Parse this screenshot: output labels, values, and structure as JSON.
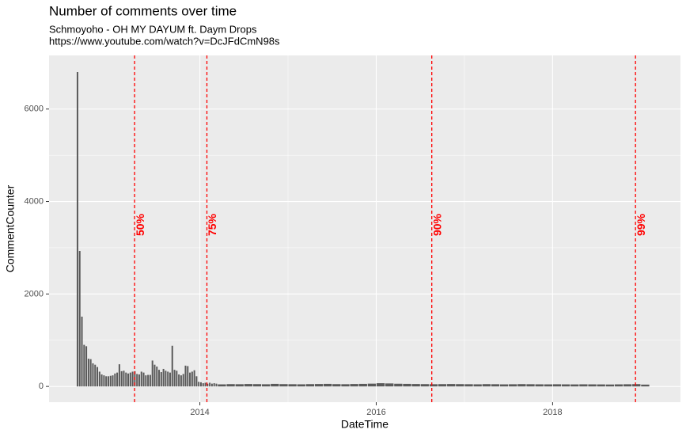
{
  "chart_data": {
    "type": "histogram",
    "title": "Number of comments over time",
    "subtitle": [
      "Schmoyoho - OH MY DAYUM ft. Daym Drops",
      "https://www.youtube.com/watch?v=DcJFdCmN98s"
    ],
    "x_label": "DateTime",
    "y_label": "CommentCounter",
    "bins": [
      2012.6,
      2012.625,
      2012.65,
      2012.675,
      2012.7,
      2012.725,
      2012.75,
      2012.775,
      2012.8,
      2012.825,
      2012.85,
      2012.875,
      2012.9,
      2012.925,
      2012.95,
      2012.975,
      2013,
      2013.025,
      2013.05,
      2013.075,
      2013.1,
      2013.125,
      2013.15,
      2013.175,
      2013.2,
      2013.225,
      2013.25,
      2013.275,
      2013.3,
      2013.325,
      2013.35,
      2013.375,
      2013.4,
      2013.425,
      2013.45,
      2013.475,
      2013.5,
      2013.525,
      2013.55,
      2013.575,
      2013.6,
      2013.625,
      2013.65,
      2013.675,
      2013.7,
      2013.725,
      2013.75,
      2013.775,
      2013.8,
      2013.825,
      2013.85,
      2013.875,
      2013.9,
      2013.925,
      2013.95,
      2013.975,
      2014,
      2014.025,
      2014.05,
      2014.075,
      2014.1,
      2014.125,
      2014.15,
      2014.175,
      2014.2,
      2014.3,
      2014.4,
      2014.5,
      2014.6,
      2014.7,
      2014.8,
      2014.9,
      2015,
      2015.1,
      2015.2,
      2015.3,
      2015.4,
      2015.5,
      2015.6,
      2015.7,
      2015.8,
      2015.9,
      2016,
      2016.1,
      2016.2,
      2016.3,
      2016.4,
      2016.5,
      2016.6,
      2016.7,
      2016.8,
      2016.9,
      2017,
      2017.1,
      2017.2,
      2017.3,
      2017.4,
      2017.5,
      2017.6,
      2017.7,
      2017.8,
      2017.9,
      2018,
      2018.1,
      2018.2,
      2018.3,
      2018.4,
      2018.5,
      2018.6,
      2018.7,
      2018.8,
      2018.9,
      2019,
      2019.1
    ],
    "values": [
      6800,
      2930,
      1510,
      900,
      870,
      600,
      590,
      500,
      470,
      420,
      320,
      260,
      240,
      220,
      220,
      230,
      240,
      280,
      300,
      480,
      330,
      340,
      300,
      280,
      300,
      320,
      330,
      270,
      260,
      320,
      300,
      240,
      250,
      250,
      560,
      470,
      430,
      360,
      310,
      380,
      340,
      320,
      300,
      880,
      360,
      340,
      260,
      240,
      270,
      450,
      440,
      300,
      320,
      350,
      220,
      100,
      90,
      70,
      80,
      60,
      80,
      60,
      70,
      60,
      45,
      50,
      48,
      52,
      50,
      47,
      55,
      50,
      48,
      46,
      50,
      52,
      55,
      50,
      48,
      52,
      55,
      60,
      70,
      65,
      58,
      55,
      52,
      50,
      48,
      50,
      52,
      50,
      48,
      46,
      50,
      48,
      45,
      47,
      50,
      48,
      46,
      45,
      47,
      45,
      44,
      46,
      45,
      44,
      42,
      45,
      47,
      50,
      40
    ],
    "color": "#595959",
    "vlines": [
      {
        "x": 2013.26,
        "label": "50%"
      },
      {
        "x": 2014.08,
        "label": "75%"
      },
      {
        "x": 2016.63,
        "label": "90%"
      },
      {
        "x": 2018.94,
        "label": "99%"
      }
    ],
    "vline_color": "#ff0000",
    "xlim": [
      2012.29,
      2019.45
    ],
    "xticks": [
      2014,
      2016,
      2018
    ],
    "ylim": [
      -340,
      7160
    ],
    "yticks": [
      0,
      2000,
      4000,
      6000
    ],
    "grid": true
  }
}
